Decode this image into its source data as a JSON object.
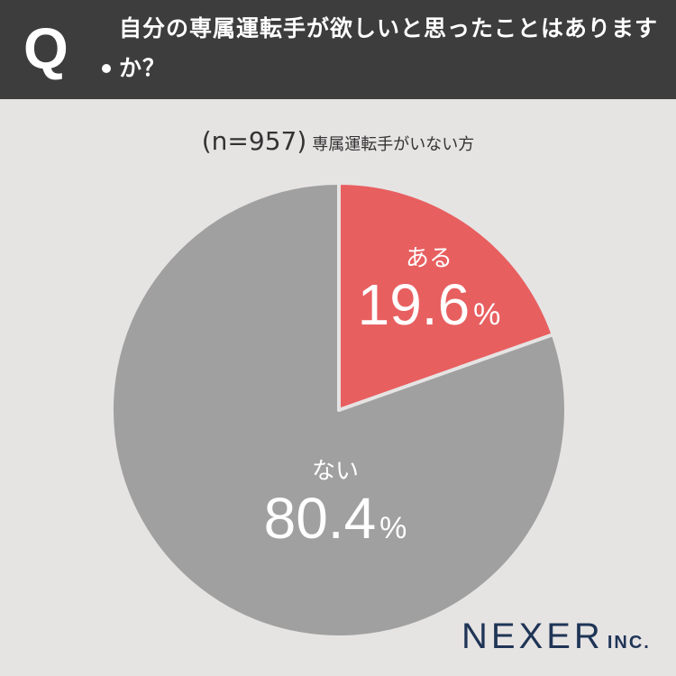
{
  "header": {
    "q_mark": "Q",
    "question": "自分の専属運転手が欲しいと思ったことはありますか？"
  },
  "subtitle": {
    "n": "(n=957)",
    "segment": "専属運転手がいない方"
  },
  "chart_data": {
    "type": "pie",
    "title": "",
    "slices": [
      {
        "label": "ある",
        "value": 19.6,
        "display": "19.6",
        "unit": "%",
        "color": "#e85f60"
      },
      {
        "label": "ない",
        "value": 80.4,
        "display": "80.4",
        "unit": "%",
        "color": "#a0a0a0"
      }
    ],
    "start": "12 o'clock",
    "direction": "clockwise",
    "legend": "none",
    "label_color": "#ffffff"
  },
  "logo": {
    "main": "NEXER",
    "suffix": "INC."
  }
}
